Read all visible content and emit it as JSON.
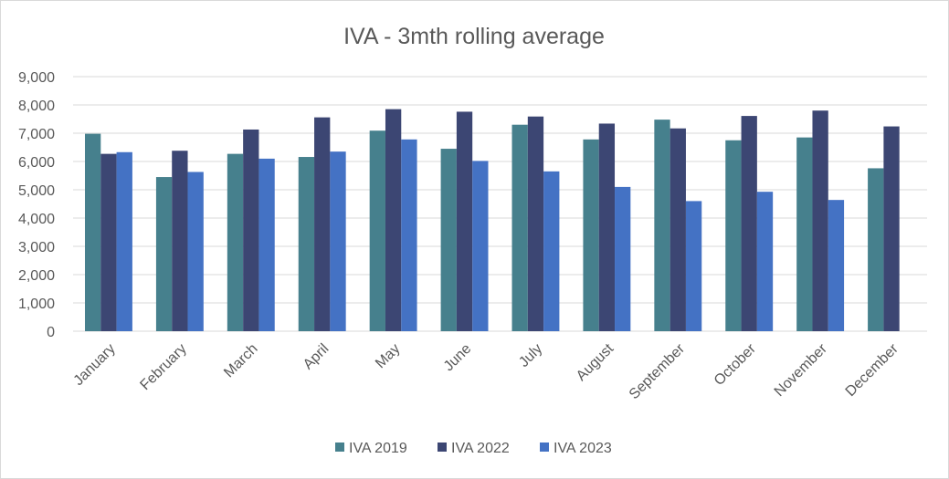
{
  "chart_data": {
    "type": "bar",
    "title": "IVA - 3mth rolling average",
    "xlabel": "",
    "ylabel": "",
    "ylim": [
      0,
      9000
    ],
    "yticks": [
      "0",
      "1,000",
      "2,000",
      "3,000",
      "4,000",
      "5,000",
      "6,000",
      "7,000",
      "8,000",
      "9,000"
    ],
    "grid": true,
    "legend_position": "bottom",
    "categories": [
      "January",
      "February",
      "March",
      "April",
      "May",
      "June",
      "July",
      "August",
      "September",
      "October",
      "November",
      "December"
    ],
    "series": [
      {
        "name": "IVA 2019",
        "color": "#46808d",
        "values": [
          6980,
          5450,
          6270,
          6160,
          7090,
          6450,
          7300,
          6780,
          7480,
          6750,
          6850,
          5760
        ]
      },
      {
        "name": "IVA 2022",
        "color": "#3c4673",
        "values": [
          6270,
          6380,
          7130,
          7560,
          7850,
          7760,
          7590,
          7340,
          7170,
          7610,
          7800,
          7240
        ]
      },
      {
        "name": "IVA 2023",
        "color": "#4472c4",
        "values": [
          6330,
          5630,
          6100,
          6350,
          6780,
          6020,
          5650,
          5100,
          4600,
          4930,
          4640,
          null
        ]
      }
    ]
  }
}
